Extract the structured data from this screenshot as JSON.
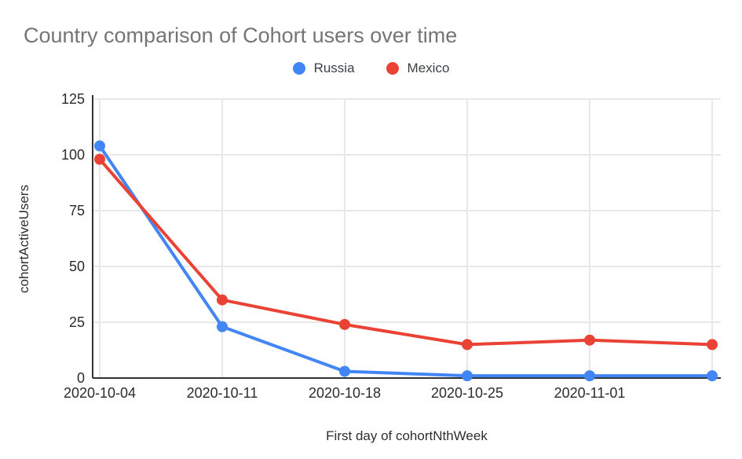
{
  "page": {
    "background": "#ffffff"
  },
  "header": {
    "title": "Country comparison of Cohort users over time",
    "title_color": "#757575"
  },
  "chart_data": {
    "type": "line",
    "title": "Country comparison of Cohort users over time",
    "xlabel": "First day of cohortNthWeek",
    "ylabel": "cohortActiveUsers",
    "categories": [
      "2020-10-04",
      "2020-10-11",
      "2020-10-18",
      "2020-10-25",
      "2020-11-01",
      ""
    ],
    "series": [
      {
        "name": "Russia",
        "color": "#4285f4",
        "values": [
          104,
          23,
          3,
          1,
          1,
          1
        ]
      },
      {
        "name": "Mexico",
        "color": "#ea4335",
        "values": [
          98,
          35,
          24,
          15,
          17,
          15
        ]
      }
    ],
    "ylim": [
      0,
      125
    ],
    "y_ticks": [
      0,
      25,
      50,
      75,
      100,
      125
    ],
    "legend_position": "top",
    "grid": true,
    "marker": "circle",
    "grid_color": "#e8e8e8",
    "axis_line_color": "#333333",
    "tick_label_color": "#2b2b2b"
  }
}
